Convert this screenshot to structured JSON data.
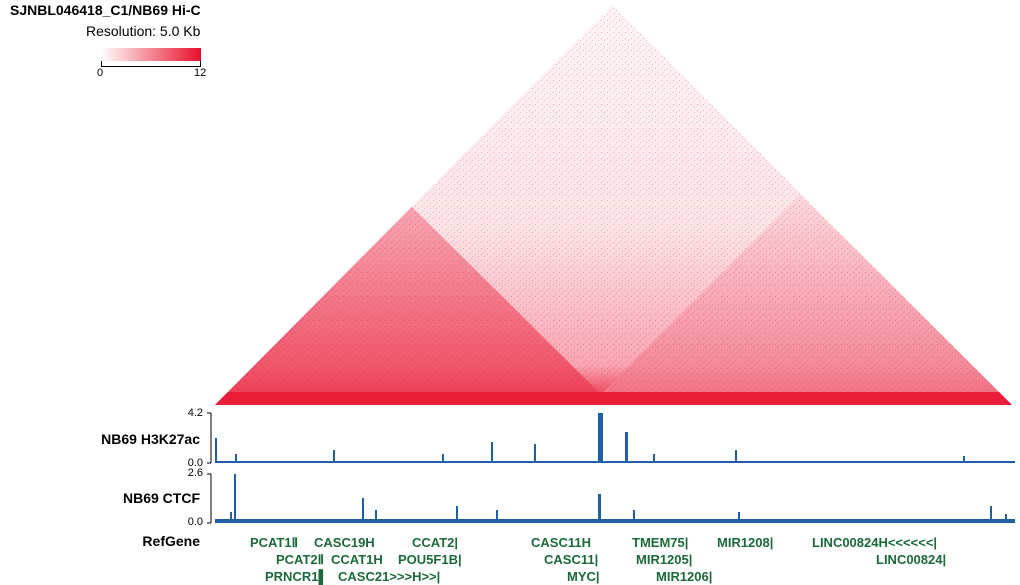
{
  "hic": {
    "title": "SJNBL046418_C1/NB69 Hi-C",
    "resolution_label": "Resolution: 5.0 Kb",
    "color_scale": {
      "min": "0",
      "max": "12",
      "low_color": "#ffffff",
      "high_color": "#e8102a"
    }
  },
  "tracks": [
    {
      "name": "NB69 H3K27ac",
      "max": "4.2",
      "min": "0.0",
      "color": "#1f5fa6"
    },
    {
      "name": "NB69 CTCF",
      "max": "2.6",
      "min": "0.0",
      "color": "#1f5fa6"
    }
  ],
  "refgene": {
    "label": "RefGene",
    "color": "#1b6a3a",
    "genes": [
      {
        "name": "PCAT1",
        "glyph": "Ⅱ"
      },
      {
        "name": "CASC19",
        "glyph": "H"
      },
      {
        "name": "CCAT2",
        "glyph": "|"
      },
      {
        "name": "CASC11",
        "glyph": "H"
      },
      {
        "name": "TMEM75",
        "glyph": "|"
      },
      {
        "name": "MIR1208",
        "glyph": "|"
      },
      {
        "name": "LINC00824",
        "glyph": "H<<<<<<|"
      },
      {
        "name": "PCAT2",
        "glyph": "Ⅱ"
      },
      {
        "name": "CCAT1",
        "glyph": "H"
      },
      {
        "name": "POU5F1B",
        "glyph": "|"
      },
      {
        "name": "CASC11",
        "glyph": "|"
      },
      {
        "name": "MIR1205",
        "glyph": "|"
      },
      {
        "name": "LINC00824",
        "glyph": "|"
      },
      {
        "name": "PRNCR1",
        "glyph": "▌"
      },
      {
        "name": "CASC21",
        "glyph": ">>>H>>|"
      },
      {
        "name": "MYC",
        "glyph": "|"
      },
      {
        "name": "MIR1206",
        "glyph": "|"
      }
    ]
  }
}
